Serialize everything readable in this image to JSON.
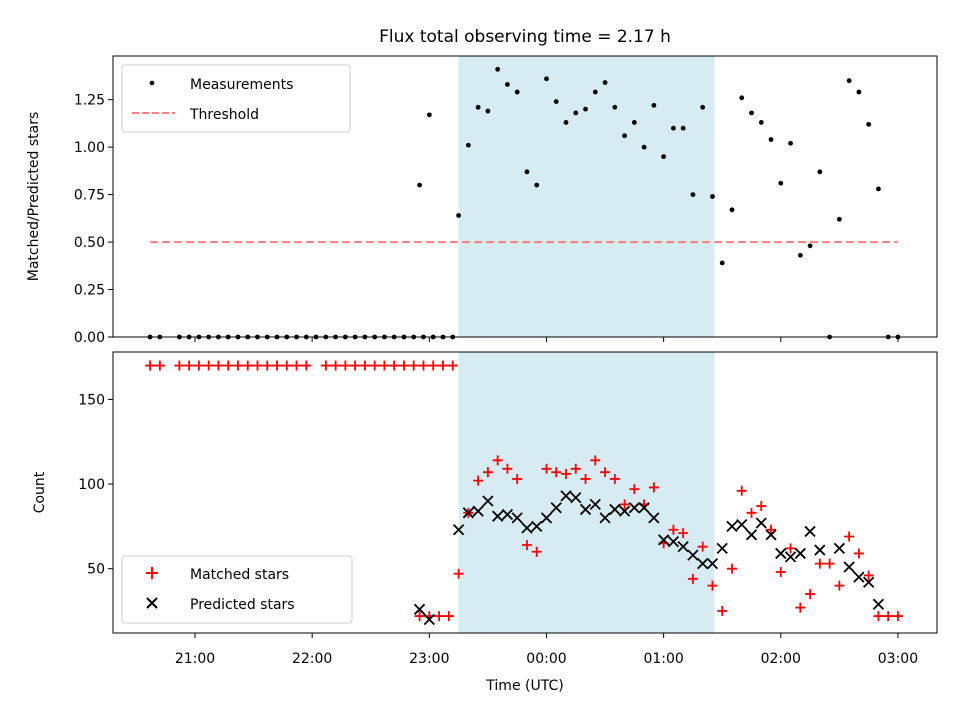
{
  "chart_data": [
    {
      "type": "scatter",
      "title": "Flux total observing time = 2.17 h",
      "xlabel": "",
      "ylabel": "Matched/Predicted stars",
      "xlim": [
        "20:18",
        "03:20"
      ],
      "ylim": [
        0,
        1.48
      ],
      "yticks": [
        "0.00",
        "0.25",
        "0.50",
        "0.75",
        "1.00",
        "1.25"
      ],
      "highlight_span": {
        "from": "23:15",
        "to": "01:26",
        "color": "#add8e6"
      },
      "legend_position": "upper left",
      "series": [
        {
          "name": "Measurements",
          "marker": "dot",
          "color": "#000000",
          "points": [
            [
              "20:37",
              0
            ],
            [
              "20:42",
              0
            ],
            [
              "20:52",
              0
            ],
            [
              "20:57",
              0
            ],
            [
              "21:02",
              0
            ],
            [
              "21:07",
              0
            ],
            [
              "21:12",
              0
            ],
            [
              "21:17",
              0
            ],
            [
              "21:22",
              0
            ],
            [
              "21:27",
              0
            ],
            [
              "21:32",
              0
            ],
            [
              "21:37",
              0
            ],
            [
              "21:42",
              0
            ],
            [
              "21:47",
              0
            ],
            [
              "21:52",
              0
            ],
            [
              "21:57",
              0
            ],
            [
              "22:02",
              0
            ],
            [
              "22:07",
              0
            ],
            [
              "22:12",
              0
            ],
            [
              "22:17",
              0
            ],
            [
              "22:22",
              0
            ],
            [
              "22:27",
              0
            ],
            [
              "22:32",
              0
            ],
            [
              "22:37",
              0
            ],
            [
              "22:42",
              0
            ],
            [
              "22:47",
              0
            ],
            [
              "22:52",
              0
            ],
            [
              "22:57",
              0
            ],
            [
              "23:02",
              0
            ],
            [
              "23:07",
              0
            ],
            [
              "23:12",
              0
            ],
            [
              "22:55",
              0.8
            ],
            [
              "23:00",
              1.17
            ],
            [
              "23:15",
              0.64
            ],
            [
              "23:20",
              1.01
            ],
            [
              "23:25",
              1.21
            ],
            [
              "23:30",
              1.19
            ],
            [
              "23:35",
              1.41
            ],
            [
              "23:40",
              1.33
            ],
            [
              "23:45",
              1.29
            ],
            [
              "23:50",
              0.87
            ],
            [
              "23:55",
              0.8
            ],
            [
              "00:00",
              1.36
            ],
            [
              "00:05",
              1.24
            ],
            [
              "00:10",
              1.13
            ],
            [
              "00:15",
              1.18
            ],
            [
              "00:20",
              1.2
            ],
            [
              "00:25",
              1.29
            ],
            [
              "00:30",
              1.34
            ],
            [
              "00:35",
              1.21
            ],
            [
              "00:40",
              1.06
            ],
            [
              "00:45",
              1.13
            ],
            [
              "00:50",
              1.0
            ],
            [
              "00:55",
              1.22
            ],
            [
              "01:00",
              0.95
            ],
            [
              "01:05",
              1.1
            ],
            [
              "01:10",
              1.1
            ],
            [
              "01:15",
              0.75
            ],
            [
              "01:20",
              1.21
            ],
            [
              "01:25",
              0.74
            ],
            [
              "01:30",
              0.39
            ],
            [
              "01:35",
              0.67
            ],
            [
              "01:40",
              1.26
            ],
            [
              "01:45",
              1.18
            ],
            [
              "01:50",
              1.13
            ],
            [
              "01:55",
              1.04
            ],
            [
              "02:00",
              0.81
            ],
            [
              "02:05",
              1.02
            ],
            [
              "02:10",
              0.43
            ],
            [
              "02:15",
              0.48
            ],
            [
              "02:20",
              0.87
            ],
            [
              "02:25",
              0
            ],
            [
              "02:30",
              0.62
            ],
            [
              "02:35",
              1.35
            ],
            [
              "02:40",
              1.29
            ],
            [
              "02:45",
              1.12
            ],
            [
              "02:50",
              0.78
            ],
            [
              "02:55",
              0
            ],
            [
              "03:00",
              0
            ]
          ]
        },
        {
          "name": "Threshold",
          "type": "line",
          "style": "dashed",
          "color": "#ff7f7f",
          "points": [
            [
              "20:37",
              0.5
            ],
            [
              "03:00",
              0.5
            ]
          ]
        }
      ]
    },
    {
      "type": "scatter",
      "title": "",
      "xlabel": "Time (UTC)",
      "ylabel": "Count",
      "xlim": [
        "20:18",
        "03:20"
      ],
      "ylim": [
        12,
        178
      ],
      "xticks": [
        "21:00",
        "22:00",
        "23:00",
        "00:00",
        "01:00",
        "02:00",
        "03:00"
      ],
      "yticks": [
        "50",
        "100",
        "150"
      ],
      "highlight_span": {
        "from": "23:15",
        "to": "01:26",
        "color": "#add8e6"
      },
      "legend_position": "lower left",
      "series": [
        {
          "name": "Matched stars",
          "marker": "plus",
          "color": "#ff0000",
          "points": [
            [
              "20:37",
              170
            ],
            [
              "20:42",
              170
            ],
            [
              "20:52",
              170
            ],
            [
              "20:57",
              170
            ],
            [
              "21:02",
              170
            ],
            [
              "21:07",
              170
            ],
            [
              "21:12",
              170
            ],
            [
              "21:17",
              170
            ],
            [
              "21:22",
              170
            ],
            [
              "21:27",
              170
            ],
            [
              "21:32",
              170
            ],
            [
              "21:37",
              170
            ],
            [
              "21:42",
              170
            ],
            [
              "21:47",
              170
            ],
            [
              "21:52",
              170
            ],
            [
              "21:57",
              170
            ],
            [
              "22:07",
              170
            ],
            [
              "22:12",
              170
            ],
            [
              "22:17",
              170
            ],
            [
              "22:22",
              170
            ],
            [
              "22:27",
              170
            ],
            [
              "22:32",
              170
            ],
            [
              "22:37",
              170
            ],
            [
              "22:42",
              170
            ],
            [
              "22:47",
              170
            ],
            [
              "22:52",
              170
            ],
            [
              "22:57",
              170
            ],
            [
              "23:02",
              170
            ],
            [
              "23:07",
              170
            ],
            [
              "23:12",
              170
            ],
            [
              "22:55",
              22
            ],
            [
              "23:00",
              22
            ],
            [
              "23:05",
              22
            ],
            [
              "23:10",
              22
            ],
            [
              "23:15",
              47
            ],
            [
              "23:20",
              83
            ],
            [
              "23:25",
              102
            ],
            [
              "23:30",
              107
            ],
            [
              "23:35",
              114
            ],
            [
              "23:40",
              109
            ],
            [
              "23:45",
              103
            ],
            [
              "23:50",
              64
            ],
            [
              "23:55",
              60
            ],
            [
              "00:00",
              109
            ],
            [
              "00:05",
              107
            ],
            [
              "00:10",
              106
            ],
            [
              "00:15",
              109
            ],
            [
              "00:20",
              103
            ],
            [
              "00:25",
              114
            ],
            [
              "00:30",
              107
            ],
            [
              "00:35",
              103
            ],
            [
              "00:40",
              88
            ],
            [
              "00:45",
              97
            ],
            [
              "00:50",
              88
            ],
            [
              "00:55",
              98
            ],
            [
              "01:00",
              65
            ],
            [
              "01:05",
              73
            ],
            [
              "01:10",
              71
            ],
            [
              "01:15",
              44
            ],
            [
              "01:20",
              63
            ],
            [
              "01:25",
              40
            ],
            [
              "01:30",
              25
            ],
            [
              "01:35",
              50
            ],
            [
              "01:40",
              96
            ],
            [
              "01:45",
              83
            ],
            [
              "01:50",
              87
            ],
            [
              "01:55",
              73
            ],
            [
              "02:00",
              48
            ],
            [
              "02:05",
              62
            ],
            [
              "02:10",
              27
            ],
            [
              "02:15",
              35
            ],
            [
              "02:20",
              53
            ],
            [
              "02:25",
              53
            ],
            [
              "02:30",
              40
            ],
            [
              "02:35",
              69
            ],
            [
              "02:40",
              59
            ],
            [
              "02:45",
              46
            ],
            [
              "02:50",
              22
            ],
            [
              "02:55",
              22
            ],
            [
              "03:00",
              22
            ]
          ]
        },
        {
          "name": "Predicted stars",
          "marker": "x",
          "color": "#000000",
          "points": [
            [
              "22:55",
              26
            ],
            [
              "23:00",
              20
            ],
            [
              "23:15",
              73
            ],
            [
              "23:20",
              83
            ],
            [
              "23:25",
              84
            ],
            [
              "23:30",
              90
            ],
            [
              "23:35",
              81
            ],
            [
              "23:40",
              82
            ],
            [
              "23:45",
              80
            ],
            [
              "23:50",
              74
            ],
            [
              "23:55",
              75
            ],
            [
              "00:00",
              80
            ],
            [
              "00:05",
              86
            ],
            [
              "00:10",
              93
            ],
            [
              "00:15",
              92
            ],
            [
              "00:20",
              85
            ],
            [
              "00:25",
              88
            ],
            [
              "00:30",
              80
            ],
            [
              "00:35",
              85
            ],
            [
              "00:40",
              84
            ],
            [
              "00:45",
              86
            ],
            [
              "00:50",
              86
            ],
            [
              "00:55",
              80
            ],
            [
              "01:00",
              67
            ],
            [
              "01:05",
              66
            ],
            [
              "01:10",
              63
            ],
            [
              "01:15",
              58
            ],
            [
              "01:20",
              53
            ],
            [
              "01:25",
              53
            ],
            [
              "01:30",
              62
            ],
            [
              "01:35",
              75
            ],
            [
              "01:40",
              76
            ],
            [
              "01:45",
              70
            ],
            [
              "01:50",
              77
            ],
            [
              "01:55",
              70
            ],
            [
              "02:00",
              59
            ],
            [
              "02:05",
              57
            ],
            [
              "02:10",
              59
            ],
            [
              "02:15",
              72
            ],
            [
              "02:20",
              61
            ],
            [
              "02:30",
              62
            ],
            [
              "02:35",
              51
            ],
            [
              "02:40",
              45
            ],
            [
              "02:45",
              42
            ],
            [
              "02:50",
              29
            ]
          ]
        }
      ]
    }
  ]
}
